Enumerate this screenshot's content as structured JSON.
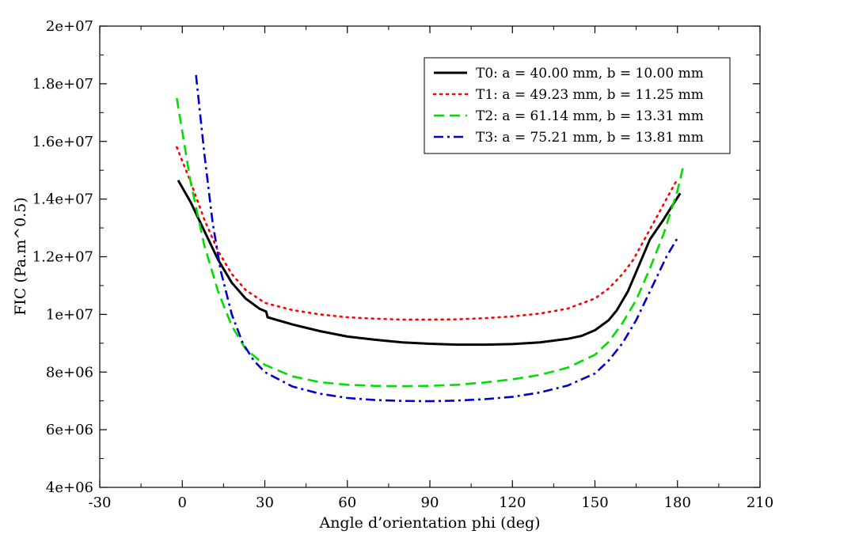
{
  "chart_data": {
    "type": "line",
    "title": "",
    "xlabel": "Angle d’orientation phi (deg)",
    "ylabel": "FIC (Pa.m^0.5)",
    "xlim": [
      -30,
      210
    ],
    "ylim": [
      4000000,
      20000000
    ],
    "x_ticks": [
      -30,
      0,
      30,
      60,
      90,
      120,
      150,
      180,
      210
    ],
    "y_ticks": [
      4000000,
      6000000,
      8000000,
      10000000,
      12000000,
      14000000,
      16000000,
      18000000,
      20000000
    ],
    "x_tick_labels": [
      "-30",
      "0",
      "30",
      "60",
      "90",
      "120",
      "150",
      "180",
      "210"
    ],
    "y_tick_labels": [
      "4e+06",
      "6e+06",
      "8e+06",
      "1e+07",
      "1.2e+07",
      "1.4e+07",
      "1.6e+07",
      "1.8e+07",
      "2e+07"
    ],
    "grid": false,
    "legend_position": "top-right",
    "series": [
      {
        "name": "T0: a = 40.00 mm, b = 10.00 mm",
        "color": "#000000",
        "style": "solid",
        "x": [
          -1.5,
          3,
          8,
          13,
          18,
          23,
          28,
          30.5,
          31,
          40,
          50,
          60,
          70,
          80,
          90,
          100,
          110,
          120,
          130,
          140,
          145,
          150,
          155,
          158,
          162,
          166,
          170,
          175,
          181
        ],
        "y": [
          14650000,
          13900000,
          12900000,
          11900000,
          11100000,
          10550000,
          10200000,
          10100000,
          9900000,
          9650000,
          9420000,
          9230000,
          9120000,
          9030000,
          8980000,
          8950000,
          8950000,
          8970000,
          9030000,
          9150000,
          9250000,
          9450000,
          9800000,
          10150000,
          10800000,
          11700000,
          12600000,
          13300000,
          14200000
        ]
      },
      {
        "name": "T1: a = 49.23 mm, b = 11.25 mm",
        "color": "#ff0000",
        "style": "dotted",
        "x": [
          -2,
          3,
          8,
          13,
          18,
          23,
          30,
          40,
          50,
          60,
          70,
          80,
          90,
          100,
          110,
          120,
          130,
          140,
          150,
          155,
          160,
          164,
          168,
          172,
          176,
          180
        ],
        "y": [
          15800000,
          14600000,
          13300000,
          12200000,
          11400000,
          10850000,
          10400000,
          10150000,
          10000000,
          9900000,
          9850000,
          9820000,
          9820000,
          9830000,
          9870000,
          9930000,
          10030000,
          10200000,
          10550000,
          10900000,
          11400000,
          11900000,
          12600000,
          13300000,
          14000000,
          14700000
        ]
      },
      {
        "name": "T2: a = 61.14 mm, b = 13.31 mm",
        "color": "#00dd00",
        "style": "dashed",
        "x": [
          -2,
          3,
          8,
          13,
          18,
          23,
          30,
          40,
          50,
          60,
          70,
          80,
          90,
          100,
          110,
          120,
          130,
          140,
          150,
          155,
          160,
          165,
          170,
          175,
          180,
          182
        ],
        "y": [
          17500000,
          14600000,
          12400000,
          10800000,
          9600000,
          8800000,
          8250000,
          7850000,
          7650000,
          7560000,
          7520000,
          7510000,
          7520000,
          7560000,
          7640000,
          7750000,
          7900000,
          8150000,
          8600000,
          9050000,
          9700000,
          10500000,
          11600000,
          12800000,
          14300000,
          15100000
        ]
      },
      {
        "name": "T3: a = 75.21 mm, b = 13.81 mm",
        "color": "#0000cc",
        "style": "dashdot",
        "x": [
          5,
          8,
          11,
          14,
          18,
          22,
          26,
          30,
          40,
          50,
          60,
          70,
          80,
          90,
          100,
          110,
          120,
          130,
          140,
          150,
          155,
          160,
          165,
          168,
          172,
          176,
          180
        ],
        "y": [
          18300000,
          15600000,
          13200000,
          11500000,
          10000000,
          9000000,
          8400000,
          8000000,
          7500000,
          7250000,
          7100000,
          7030000,
          7000000,
          6990000,
          7010000,
          7060000,
          7140000,
          7290000,
          7530000,
          7950000,
          8400000,
          9000000,
          9800000,
          10400000,
          11200000,
          12000000,
          12650000
        ]
      }
    ]
  }
}
